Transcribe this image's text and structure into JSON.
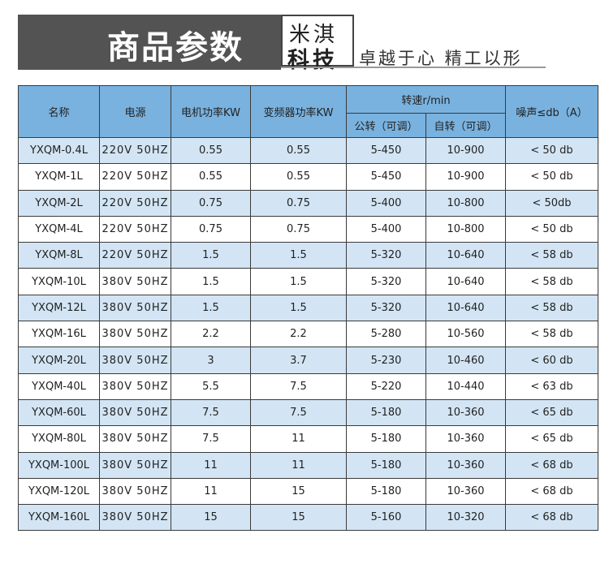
{
  "header": {
    "title": "商品参数",
    "brand_line1": "米淇",
    "brand_line2": "科技",
    "slogan": "卓越于心 精工以形"
  },
  "colors": {
    "header_bg": "#79b2df",
    "row_shade": "#d3e5f4",
    "banner_bg": "#535353"
  },
  "table": {
    "headers": {
      "name": "名称",
      "power_supply": "电源",
      "motor_power": "电机功率KW",
      "inverter_power": "变频器功率KW",
      "speed": "转速r/min",
      "revolution": "公转（可调）",
      "rotation": "自转（可调）",
      "noise": "噪声≤db（A）"
    },
    "rows": [
      {
        "name": "YXQM-0.4L",
        "power": "220V  50HZ",
        "motor": "0.55",
        "inverter": "0.55",
        "revolution": "5-450",
        "rotation": "10-900",
        "noise": "< 50 db"
      },
      {
        "name": "YXQM-1L",
        "power": "220V  50HZ",
        "motor": "0.55",
        "inverter": "0.55",
        "revolution": "5-450",
        "rotation": "10-900",
        "noise": "< 50 db"
      },
      {
        "name": "YXQM-2L",
        "power": "220V  50HZ",
        "motor": "0.75",
        "inverter": "0.75",
        "revolution": "5-400",
        "rotation": "10-800",
        "noise": "< 50db"
      },
      {
        "name": "YXQM-4L",
        "power": "220V  50HZ",
        "motor": "0.75",
        "inverter": "0.75",
        "revolution": "5-400",
        "rotation": "10-800",
        "noise": "< 50 db"
      },
      {
        "name": "YXQM-8L",
        "power": "220V  50HZ",
        "motor": "1.5",
        "inverter": "1.5",
        "revolution": "5-320",
        "rotation": "10-640",
        "noise": "< 58 db"
      },
      {
        "name": "YXQM-10L",
        "power": "380V  50HZ",
        "motor": "1.5",
        "inverter": "1.5",
        "revolution": "5-320",
        "rotation": "10-640",
        "noise": "< 58 db"
      },
      {
        "name": "YXQM-12L",
        "power": "380V  50HZ",
        "motor": "1.5",
        "inverter": "1.5",
        "revolution": "5-320",
        "rotation": "10-640",
        "noise": "< 58 db"
      },
      {
        "name": "YXQM-16L",
        "power": "380V  50HZ",
        "motor": "2.2",
        "inverter": "2.2",
        "revolution": "5-280",
        "rotation": "10-560",
        "noise": "< 58 db"
      },
      {
        "name": "YXQM-20L",
        "power": "380V  50HZ",
        "motor": "3",
        "inverter": "3.7",
        "revolution": "5-230",
        "rotation": "10-460",
        "noise": "< 60 db"
      },
      {
        "name": "YXQM-40L",
        "power": "380V  50HZ",
        "motor": "5.5",
        "inverter": "7.5",
        "revolution": "5-220",
        "rotation": "10-440",
        "noise": "< 63 db"
      },
      {
        "name": "YXQM-60L",
        "power": "380V  50HZ",
        "motor": "7.5",
        "inverter": "7.5",
        "revolution": "5-180",
        "rotation": "10-360",
        "noise": "< 65 db"
      },
      {
        "name": "YXQM-80L",
        "power": "380V  50HZ",
        "motor": "7.5",
        "inverter": "11",
        "revolution": "5-180",
        "rotation": "10-360",
        "noise": "< 65 db"
      },
      {
        "name": "YXQM-100L",
        "power": "380V  50HZ",
        "motor": "11",
        "inverter": "11",
        "revolution": "5-180",
        "rotation": "10-360",
        "noise": "< 68 db"
      },
      {
        "name": "YXQM-120L",
        "power": "380V  50HZ",
        "motor": "11",
        "inverter": "15",
        "revolution": "5-180",
        "rotation": "10-360",
        "noise": "< 68 db"
      },
      {
        "name": "YXQM-160L",
        "power": "380V  50HZ",
        "motor": "15",
        "inverter": "15",
        "revolution": "5-160",
        "rotation": "10-320",
        "noise": "< 68 db"
      }
    ]
  }
}
